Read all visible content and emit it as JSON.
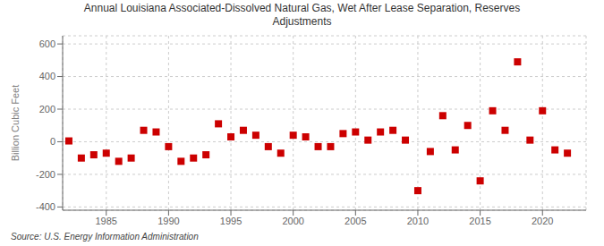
{
  "chart_data": {
    "type": "scatter",
    "title": "Annual Louisiana Associated-Dissolved Natural Gas, Wet After Lease Separation, Reserves\nAdjustments",
    "y_label": "Billion Cubic Feet",
    "annotations": [
      "Source: U.S. Energy Information Administration"
    ],
    "x": [
      1982,
      1983,
      1984,
      1985,
      1986,
      1987,
      1988,
      1989,
      1990,
      1991,
      1992,
      1993,
      1994,
      1995,
      1996,
      1997,
      1998,
      1999,
      2000,
      2001,
      2002,
      2003,
      2004,
      2005,
      2006,
      2007,
      2008,
      2009,
      2010,
      2011,
      2012,
      2013,
      2014,
      2015,
      2016,
      2017,
      2018,
      2019,
      2020,
      2021,
      2022
    ],
    "values": [
      5,
      -100,
      -80,
      -70,
      -120,
      -100,
      70,
      60,
      -30,
      -120,
      -100,
      -80,
      110,
      30,
      70,
      40,
      -30,
      -70,
      40,
      30,
      -30,
      -30,
      50,
      60,
      10,
      60,
      70,
      10,
      -300,
      -60,
      160,
      -50,
      100,
      -240,
      190,
      70,
      490,
      10,
      190,
      -50,
      -70
    ],
    "color": "#cc0000",
    "marker": "square",
    "xlim": [
      1981.5,
      2023.5
    ],
    "ylim": [
      -420,
      650
    ],
    "xticks": [
      1985,
      1990,
      1995,
      2000,
      2005,
      2010,
      2015,
      2020
    ],
    "yticks": [
      -400,
      -200,
      0,
      200,
      400,
      600
    ],
    "grid": true
  }
}
